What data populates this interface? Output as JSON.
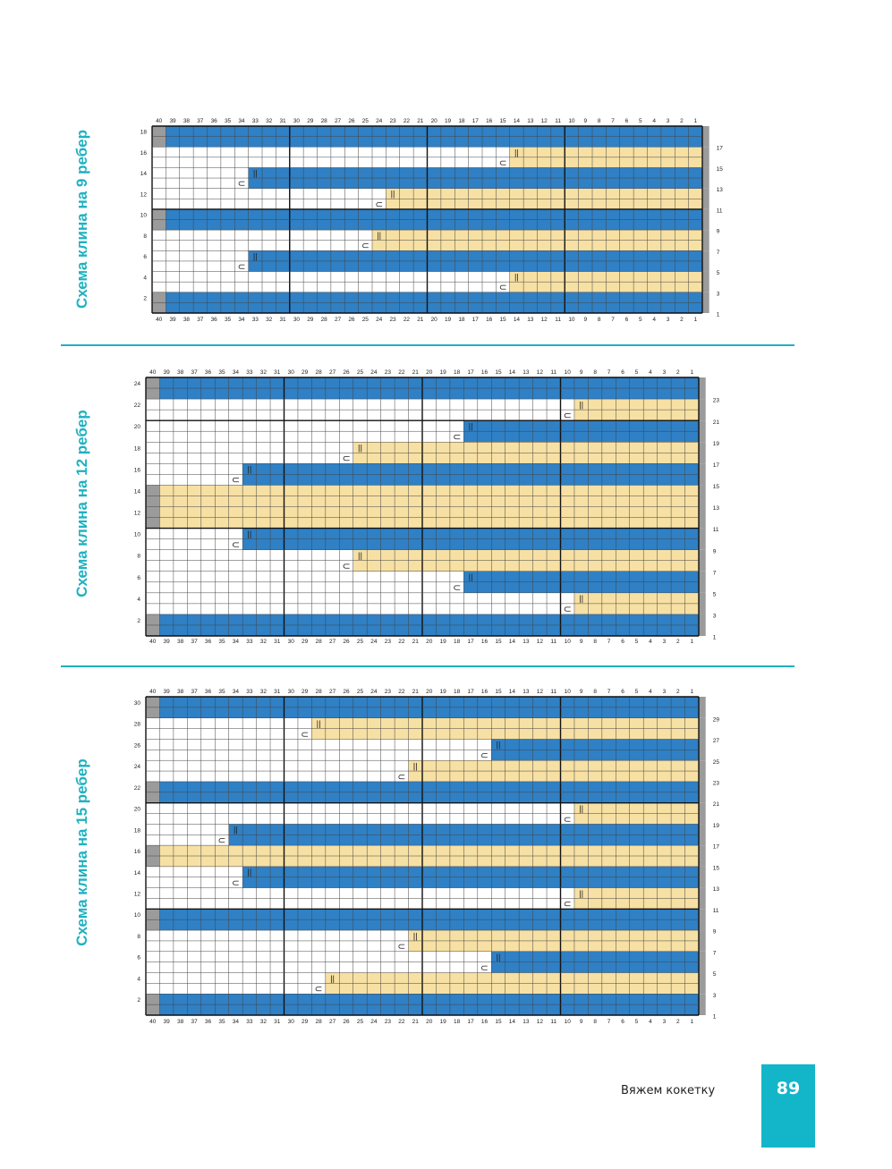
{
  "charts": [
    {
      "title": "Схема клина на 9 ребер",
      "rows": 18,
      "columns": [
        "40",
        "39",
        "38",
        "37",
        "36",
        "35",
        "34",
        "33",
        "32",
        "31",
        "30",
        "29",
        "28",
        "27",
        "26",
        "25",
        "24",
        "23",
        "22",
        "21",
        "20",
        "19",
        "18",
        "17",
        "16",
        "15",
        "14",
        "13",
        "12",
        "11",
        "10",
        "9",
        "8",
        "7",
        "6",
        "5",
        "4",
        "3",
        "2",
        "1"
      ],
      "left_row_labels": [
        "18",
        "16",
        "14",
        "12",
        "10",
        "8",
        "6",
        "4",
        "2"
      ],
      "right_row_labels": [
        "17",
        "15",
        "13",
        "11",
        "9",
        "7",
        "5",
        "3",
        "1"
      ],
      "bands": [
        {
          "rows": "17-18",
          "color": "blue",
          "from_column": 1,
          "to_column": 39,
          "edge": "gray"
        },
        {
          "rows": "15-16",
          "color": "yellow",
          "from_column": 1,
          "to_column": 14,
          "marker_column": 15
        },
        {
          "rows": "13-14",
          "color": "blue",
          "from_column": 1,
          "to_column": 33,
          "marker_column": 34
        },
        {
          "rows": "11-12",
          "color": "yellow",
          "from_column": 1,
          "to_column": 23,
          "marker_column": 24
        },
        {
          "rows": "9-10",
          "color": "blue",
          "from_column": 1,
          "to_column": 39,
          "edge": "gray"
        },
        {
          "rows": "7-8",
          "color": "yellow",
          "from_column": 1,
          "to_column": 24,
          "marker_column": 25
        },
        {
          "rows": "5-6",
          "color": "blue",
          "from_column": 1,
          "to_column": 33,
          "marker_column": 34
        },
        {
          "rows": "3-4",
          "color": "yellow",
          "from_column": 1,
          "to_column": 14,
          "marker_column": 15
        },
        {
          "rows": "1-2",
          "color": "blue",
          "from_column": 1,
          "to_column": 39,
          "edge": "gray"
        }
      ]
    },
    {
      "title": "Схема клина на 12 ребер",
      "rows": 24,
      "columns": [
        "40",
        "39",
        "38",
        "37",
        "36",
        "35",
        "34",
        "33",
        "32",
        "31",
        "30",
        "29",
        "28",
        "27",
        "26",
        "25",
        "24",
        "23",
        "22",
        "21",
        "20",
        "19",
        "18",
        "17",
        "16",
        "15",
        "14",
        "13",
        "12",
        "11",
        "10",
        "9",
        "8",
        "7",
        "6",
        "5",
        "4",
        "3",
        "2",
        "1"
      ],
      "left_row_labels": [
        "24",
        "22",
        "20",
        "18",
        "16",
        "14",
        "12",
        "10",
        "8",
        "6",
        "4",
        "2"
      ],
      "right_row_labels": [
        "23",
        "21",
        "19",
        "17",
        "15",
        "13",
        "11",
        "9",
        "7",
        "5",
        "3",
        "1"
      ],
      "bands": [
        {
          "rows": "23-24",
          "color": "blue",
          "from_column": 1,
          "to_column": 39,
          "edge": "gray"
        },
        {
          "rows": "21-22",
          "color": "yellow",
          "from_column": 1,
          "to_column": 9,
          "marker_column": 10
        },
        {
          "rows": "19-20",
          "color": "blue",
          "from_column": 1,
          "to_column": 17,
          "marker_column": 18
        },
        {
          "rows": "17-18",
          "color": "yellow",
          "from_column": 1,
          "to_column": 25,
          "marker_column": 26
        },
        {
          "rows": "15-16",
          "color": "blue",
          "from_column": 1,
          "to_column": 33,
          "marker_column": 34
        },
        {
          "rows": "11-14",
          "color": "yellow",
          "from_column": 1,
          "to_column": 39,
          "edge": "gray"
        },
        {
          "rows": "9-10",
          "color": "blue",
          "from_column": 1,
          "to_column": 33,
          "marker_column": 34
        },
        {
          "rows": "7-8",
          "color": "yellow",
          "from_column": 1,
          "to_column": 25,
          "marker_column": 26
        },
        {
          "rows": "5-6",
          "color": "blue",
          "from_column": 1,
          "to_column": 17,
          "marker_column": 18
        },
        {
          "rows": "3-4",
          "color": "yellow",
          "from_column": 1,
          "to_column": 9,
          "marker_column": 10
        },
        {
          "rows": "1-2",
          "color": "blue",
          "from_column": 1,
          "to_column": 39,
          "edge": "gray"
        }
      ]
    },
    {
      "title": "Схема клина на 15 ребер",
      "rows": 30,
      "columns": [
        "40",
        "39",
        "38",
        "37",
        "36",
        "35",
        "34",
        "33",
        "32",
        "31",
        "30",
        "29",
        "28",
        "27",
        "26",
        "25",
        "24",
        "23",
        "22",
        "21",
        "20",
        "19",
        "18",
        "17",
        "16",
        "15",
        "14",
        "13",
        "12",
        "11",
        "10",
        "9",
        "8",
        "7",
        "6",
        "5",
        "4",
        "3",
        "2",
        "1"
      ],
      "left_row_labels": [
        "30",
        "28",
        "26",
        "24",
        "22",
        "20",
        "18",
        "16",
        "14",
        "12",
        "10",
        "8",
        "6",
        "4",
        "2"
      ],
      "right_row_labels": [
        "29",
        "27",
        "25",
        "23",
        "21",
        "19",
        "17",
        "15",
        "13",
        "11",
        "9",
        "7",
        "5",
        "3",
        "1"
      ],
      "bands": [
        {
          "rows": "29-30",
          "color": "blue",
          "from_column": 1,
          "to_column": 39,
          "edge": "gray"
        },
        {
          "rows": "27-28",
          "color": "yellow",
          "from_column": 1,
          "to_column": 28,
          "marker_column": 29
        },
        {
          "rows": "25-26",
          "color": "blue",
          "from_column": 1,
          "to_column": 15,
          "marker_column": 16
        },
        {
          "rows": "23-24",
          "color": "yellow",
          "from_column": 1,
          "to_column": 21,
          "marker_column": 22
        },
        {
          "rows": "21-22",
          "color": "blue",
          "from_column": 1,
          "to_column": 39,
          "edge": "gray"
        },
        {
          "rows": "19-20",
          "color": "yellow",
          "from_column": 1,
          "to_column": 9,
          "marker_column": 10
        },
        {
          "rows": "17-18",
          "color": "blue",
          "from_column": 1,
          "to_column": 34,
          "marker_column": 35
        },
        {
          "rows": "15-16",
          "color": "yellow",
          "from_column": 1,
          "to_column": 39,
          "edge": "gray"
        },
        {
          "rows": "13-14",
          "color": "blue",
          "from_column": 1,
          "to_column": 33,
          "marker_column": 34
        },
        {
          "rows": "11-12",
          "color": "yellow",
          "from_column": 1,
          "to_column": 9,
          "marker_column": 10
        },
        {
          "rows": "9-10",
          "color": "blue",
          "from_column": 1,
          "to_column": 39,
          "edge": "gray"
        },
        {
          "rows": "7-8",
          "color": "yellow",
          "from_column": 1,
          "to_column": 21,
          "marker_column": 22
        },
        {
          "rows": "5-6",
          "color": "blue",
          "from_column": 1,
          "to_column": 15,
          "marker_column": 16
        },
        {
          "rows": "3-4",
          "color": "yellow",
          "from_column": 1,
          "to_column": 27,
          "marker_column": 28
        },
        {
          "rows": "1-2",
          "color": "blue",
          "from_column": 1,
          "to_column": 39,
          "edge": "gray"
        }
      ]
    }
  ],
  "symbols": {
    "open_marker": "⊂",
    "stitch_marker": "||"
  },
  "colors": {
    "blue": "#2f80c5",
    "yellow": "#f7e0a3",
    "gray": "#9b9b9b",
    "white": "#ffffff",
    "grid": "#333333",
    "accent": "#1eb1c0",
    "badge": "#13b6c9"
  },
  "footer": {
    "text": "Вяжем кокетку",
    "page_number": "89"
  }
}
